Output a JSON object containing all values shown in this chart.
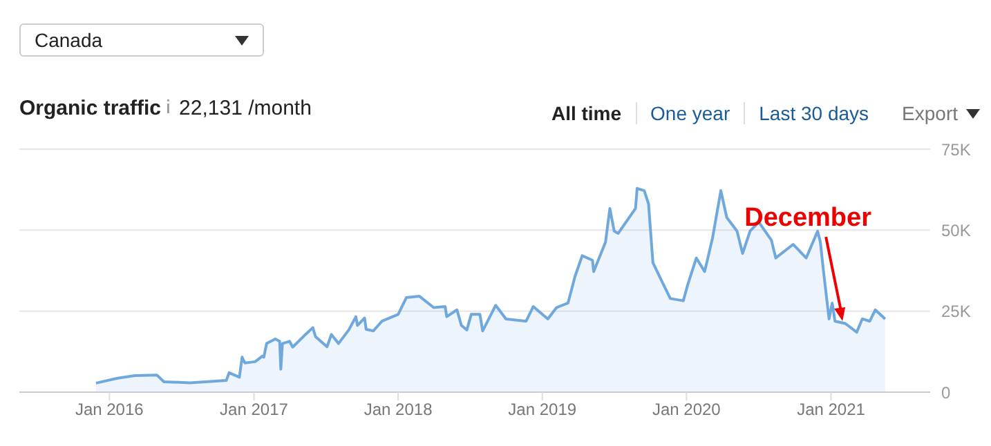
{
  "chart_data": {
    "type": "area",
    "title": "Organic traffic",
    "subtitle": "22,131 /month",
    "annotations": [
      "Canada",
      "All time",
      "One year",
      "Last 30 days",
      "Export",
      {
        "text": "December",
        "x": "2021-01-30",
        "y": 21500
      }
    ],
    "xlim": [
      "2015-05-18",
      "2021-09-09"
    ],
    "xticks": [
      {
        "value": "2016-01-01",
        "label": "Jan 2016"
      },
      {
        "value": "2017-01-01",
        "label": "Jan 2017"
      },
      {
        "value": "2018-01-01",
        "label": "Jan 2018"
      },
      {
        "value": "2019-01-01",
        "label": "Jan 2019"
      },
      {
        "value": "2020-01-01",
        "label": "Jan 2020"
      },
      {
        "value": "2021-01-01",
        "label": "Jan 2021"
      }
    ],
    "ylim": [
      0,
      75000
    ],
    "yticks": [
      0,
      {
        "value": 25000,
        "label": "25K"
      },
      {
        "value": 50000,
        "label": "50K"
      },
      {
        "value": 75000,
        "label": "75K"
      }
    ],
    "grid": "y",
    "legend": false,
    "marker": "none",
    "line_style": "solid",
    "series": [
      {
        "color": "#6fa8dc",
        "x": [
          "2015-11-28",
          "2016-01-22",
          "2016-03-06",
          "2016-04-30",
          "2016-05-18",
          "2016-07-23",
          "2016-10-23",
          "2016-10-30",
          "2016-11-25",
          "2016-12-02",
          "2016-12-09",
          "2017-01-04",
          "2017-01-22",
          "2017-01-26",
          "2017-02-02",
          "2017-02-24",
          "2017-03-07",
          "2017-03-10",
          "2017-03-14",
          "2017-04-01",
          "2017-04-09",
          "2017-05-08",
          "2017-05-30",
          "2017-06-06",
          "2017-07-05",
          "2017-07-16",
          "2017-08-03",
          "2017-08-29",
          "2017-09-16",
          "2017-09-20",
          "2017-10-08",
          "2017-10-12",
          "2017-10-30",
          "2017-11-21",
          "2018-01-01",
          "2018-01-22",
          "2018-02-24",
          "2018-04-01",
          "2018-04-30",
          "2018-05-04",
          "2018-05-30",
          "2018-06-10",
          "2018-06-24",
          "2018-07-05",
          "2018-07-27",
          "2018-08-03",
          "2018-09-05",
          "2018-10-01",
          "2018-11-21",
          "2018-12-09",
          "2019-01-15",
          "2019-02-06",
          "2019-03-07",
          "2019-03-25",
          "2019-04-12",
          "2019-05-08",
          "2019-05-11",
          "2019-06-10",
          "2019-06-21",
          "2019-07-02",
          "2019-07-12",
          "2019-08-25",
          "2019-08-29",
          "2019-09-16",
          "2019-09-27",
          "2019-10-08",
          "2019-10-30",
          "2019-11-21",
          "2019-12-24",
          "2020-01-04",
          "2020-01-26",
          "2020-02-16",
          "2020-03-07",
          "2020-03-28",
          "2020-04-12",
          "2020-05-08",
          "2020-05-22",
          "2020-06-10",
          "2020-07-02",
          "2020-08-03",
          "2020-08-14",
          "2020-09-27",
          "2020-10-30",
          "2020-11-28",
          "2020-12-05",
          "2020-12-13",
          "2020-12-27",
          "2021-01-04",
          "2021-01-11",
          "2021-02-06",
          "2021-03-07",
          "2021-03-21",
          "2021-04-09",
          "2021-04-23",
          "2021-05-18"
        ],
        "values": [
          2800,
          4300,
          5100,
          5300,
          3200,
          2900,
          3600,
          6000,
          4600,
          10800,
          9000,
          9400,
          11100,
          10800,
          15000,
          16400,
          15700,
          7100,
          15000,
          15700,
          13900,
          17400,
          19900,
          17100,
          14000,
          17800,
          15000,
          19200,
          23300,
          20600,
          22900,
          19400,
          18900,
          21900,
          24000,
          29200,
          29600,
          26100,
          26400,
          23300,
          25400,
          20600,
          19200,
          24000,
          24000,
          18900,
          26800,
          22600,
          21900,
          26400,
          22600,
          26100,
          27500,
          35800,
          42100,
          40700,
          37200,
          46300,
          56700,
          49700,
          49000,
          56700,
          62900,
          62200,
          58100,
          40000,
          34400,
          28900,
          28200,
          33100,
          41400,
          37200,
          47600,
          62200,
          53900,
          49700,
          42800,
          49700,
          52500,
          46900,
          41400,
          45600,
          41400,
          49700,
          46300,
          37200,
          22600,
          27500,
          21900,
          21200,
          18500,
          22600,
          21900,
          25400,
          22600
        ]
      }
    ]
  }
}
